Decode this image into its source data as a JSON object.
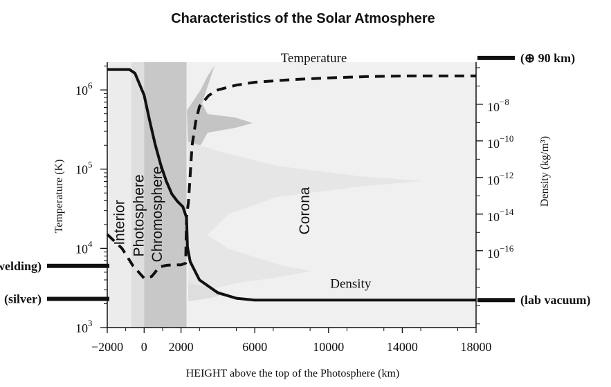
{
  "chart_data": {
    "type": "line",
    "title": "Characteristics of the Solar Atmosphere",
    "xlabel": "HEIGHT above the top of the Photosphere (km)",
    "ylabel_left": "Temperature (K)",
    "ylabel_right": "Density (kg/m³)",
    "x_range": [
      -2000,
      18000
    ],
    "y_left_range_log10": [
      3,
      6.35
    ],
    "y_right_range_log10": [
      -20.2,
      -5.7
    ],
    "y_scale": "log",
    "x_ticks": [
      {
        "value": -2000,
        "label": "−2000"
      },
      {
        "value": 0,
        "label": "0"
      },
      {
        "value": 2000,
        "label": "2000"
      },
      {
        "value": 6000,
        "label": "6000"
      },
      {
        "value": 10000,
        "label": "10000"
      },
      {
        "value": 14000,
        "label": "14000"
      },
      {
        "value": 18000,
        "label": "18000"
      }
    ],
    "y_left_ticks": [
      {
        "exp": 3,
        "label": "10",
        "sup": "3"
      },
      {
        "exp": 4,
        "label": "10",
        "sup": "4"
      },
      {
        "exp": 5,
        "label": "10",
        "sup": "5"
      },
      {
        "exp": 6,
        "label": "10",
        "sup": "6"
      }
    ],
    "y_right_ticks": [
      {
        "exp": -8,
        "label": "10",
        "sup": "−8"
      },
      {
        "exp": -10,
        "label": "10",
        "sup": "−10"
      },
      {
        "exp": -12,
        "label": "10",
        "sup": "−12"
      },
      {
        "exp": -14,
        "label": "10",
        "sup": "−14"
      },
      {
        "exp": -16,
        "label": "10",
        "sup": "−16"
      }
    ],
    "regions": [
      {
        "label": "Interior",
        "x_range": [
          -2000,
          -700
        ],
        "shade": "#ececec"
      },
      {
        "label": "Photosphere",
        "x_range": [
          -700,
          0
        ],
        "shade": "#dedede"
      },
      {
        "label": "Chromosphere",
        "x_range": [
          0,
          2300
        ],
        "shade": "#c8c8c8"
      },
      {
        "label": "Corona",
        "x_range": [
          2300,
          18000
        ],
        "shade": "#f0f0f0"
      }
    ],
    "series": [
      {
        "name": "Temperature",
        "axis": "left",
        "style": "dashed",
        "x": [
          -2000,
          -1200,
          -600,
          0,
          400,
          600,
          800,
          1200,
          1600,
          2000,
          2250,
          2300,
          2400,
          2500,
          2600,
          2800,
          3000,
          3500,
          4000,
          5000,
          6000,
          8000,
          10000,
          12000,
          14000,
          16000,
          18000
        ],
        "y": [
          15000,
          10000,
          6000,
          4200,
          4400,
          5000,
          5800,
          6100,
          6200,
          6200,
          6500,
          25000,
          38000,
          85000,
          200000,
          400000,
          620000,
          850000,
          1000000,
          1150000,
          1250000,
          1350000,
          1420000,
          1470000,
          1500000,
          1500000,
          1500000
        ]
      },
      {
        "name": "Density",
        "axis": "right",
        "style": "solid",
        "x": [
          -2000,
          -800,
          -500,
          0,
          300,
          600,
          900,
          1200,
          1500,
          1800,
          2100,
          2300,
          2350,
          2500,
          3000,
          4000,
          5000,
          6000,
          10000,
          14000,
          18000
        ],
        "y": [
          -6.1,
          -6.1,
          -6.3,
          -7.5,
          -8.9,
          -10.2,
          -11.3,
          -12.2,
          -12.9,
          -13.3,
          -13.6,
          -14.2,
          -15.8,
          -16.6,
          -17.6,
          -18.3,
          -18.6,
          -18.7,
          -18.7,
          -18.7,
          -18.7
        ]
      }
    ],
    "series_labels": [
      {
        "name": "Temperature",
        "x": 9200,
        "y_exp": 6.35
      },
      {
        "name": "Density",
        "x": 11200,
        "y_exp": 3.5
      }
    ],
    "reference_marks": [
      {
        "label": "(welding)",
        "axis": "left",
        "value": 6000
      },
      {
        "label": "(silver)",
        "axis": "left",
        "value": 2300
      },
      {
        "label": "(⊕ 90 km)",
        "axis": "right",
        "value": 3.4e-06
      },
      {
        "label": "(lab vacuum)",
        "axis": "right",
        "value": 2e-19
      }
    ]
  }
}
